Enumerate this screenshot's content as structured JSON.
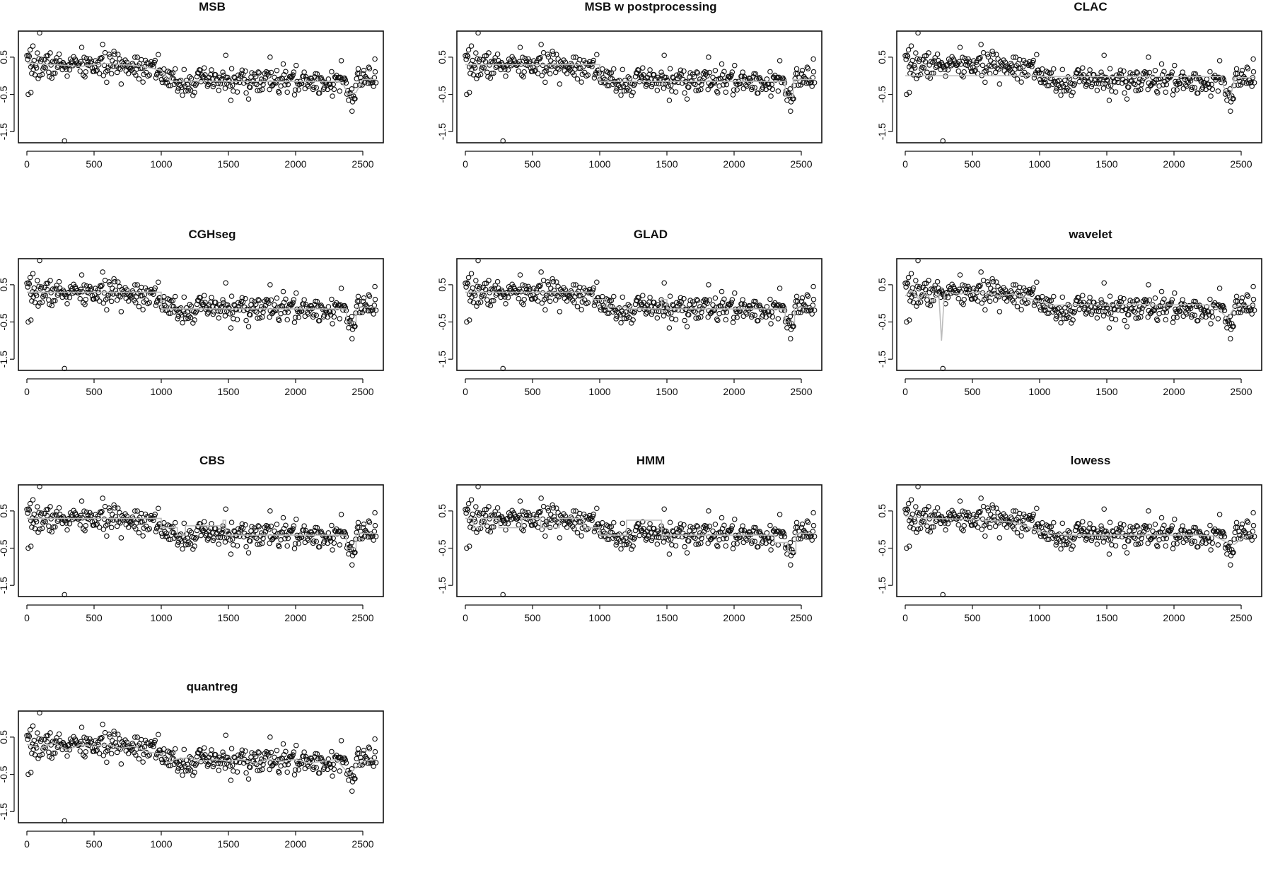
{
  "chart_data": [
    {
      "type": "scatter",
      "title": "MSB",
      "xlim": [
        0,
        2600
      ],
      "ylim": [
        -1.8,
        1.2
      ],
      "xticks": [
        "0",
        "500",
        "1000",
        "1500",
        "2000",
        "2500"
      ],
      "yticks": [
        "-1.5",
        "-0.5",
        "0.5"
      ],
      "series": [
        {
          "x": [
            0,
            100,
            200,
            300,
            400,
            500,
            600,
            700,
            800,
            900,
            1000,
            1050,
            1100,
            1300,
            1500,
            1700,
            1900,
            2100,
            2300,
            2350,
            2390,
            2450,
            2500,
            2600
          ],
          "y": [
            0.35,
            0.32,
            0.3,
            0.28,
            0.25,
            0.3,
            0.33,
            0.3,
            0.28,
            0.22,
            0.15,
            -0.1,
            -0.15,
            -0.14,
            -0.15,
            -0.15,
            -0.15,
            -0.15,
            -0.15,
            -0.2,
            -0.5,
            -0.45,
            -0.1,
            -0.1
          ]
        }
      ]
    },
    {
      "type": "scatter",
      "title": "MSB w postprocessing",
      "xlim": [
        0,
        2600
      ],
      "ylim": [
        -1.8,
        1.2
      ],
      "xticks": [
        "0",
        "500",
        "1000",
        "1500",
        "2000",
        "2500"
      ],
      "yticks": [
        "-1.5",
        "-0.5",
        "0.5"
      ],
      "series": [
        {
          "x": [
            0,
            1000,
            1000,
            2380,
            2380,
            2440,
            2440,
            2600
          ],
          "y": [
            0.3,
            0.3,
            -0.15,
            -0.15,
            -0.55,
            -0.55,
            -0.1,
            -0.1
          ]
        }
      ]
    },
    {
      "type": "scatter",
      "title": "CLAC",
      "xlim": [
        0,
        2600
      ],
      "ylim": [
        -1.8,
        1.2
      ],
      "xticks": [
        "0",
        "500",
        "1000",
        "1500",
        "2000",
        "2500"
      ],
      "yticks": [
        "-1.5",
        "-0.5",
        "0.5"
      ],
      "series": [
        {
          "x": [
            0,
            1000,
            1000,
            2350,
            2370,
            2420,
            2450,
            2600
          ],
          "y": [
            0.0,
            0.0,
            -0.02,
            -0.02,
            -0.3,
            -0.6,
            -0.05,
            -0.05
          ]
        }
      ]
    },
    {
      "type": "scatter",
      "title": "CGHseg",
      "xlim": [
        0,
        2600
      ],
      "ylim": [
        -1.8,
        1.2
      ],
      "xticks": [
        "0",
        "500",
        "1000",
        "1500",
        "2000",
        "2500"
      ],
      "yticks": [
        "-1.5",
        "-0.5",
        "0.5"
      ],
      "series": [
        {
          "x": [
            0,
            1000,
            1000,
            2380,
            2380,
            2450,
            2450,
            2600
          ],
          "y": [
            0.3,
            0.3,
            -0.15,
            -0.15,
            -0.5,
            -0.5,
            -0.1,
            -0.1
          ]
        }
      ]
    },
    {
      "type": "scatter",
      "title": "GLAD",
      "xlim": [
        0,
        2600
      ],
      "ylim": [
        -1.8,
        1.2
      ],
      "xticks": [
        "0",
        "500",
        "1000",
        "1500",
        "2000",
        "2500"
      ],
      "yticks": [
        "-1.5",
        "-0.5",
        "0.5"
      ],
      "series": [
        {
          "x": [
            0,
            950,
            950,
            1050,
            1050,
            1200,
            1200,
            1460,
            1460,
            1500,
            1500,
            2380,
            2380,
            2450,
            2450,
            2600
          ],
          "y": [
            0.3,
            0.3,
            0.1,
            0.1,
            -0.1,
            -0.1,
            -0.15,
            -0.15,
            0.1,
            0.1,
            -0.15,
            -0.15,
            -0.5,
            -0.5,
            -0.1,
            -0.1
          ]
        }
      ]
    },
    {
      "type": "scatter",
      "title": "wavelet",
      "xlim": [
        0,
        2600
      ],
      "ylim": [
        -1.8,
        1.2
      ],
      "xticks": [
        "0",
        "500",
        "1000",
        "1500",
        "2000",
        "2500"
      ],
      "yticks": [
        "-1.5",
        "-0.5",
        "0.5"
      ],
      "series": [
        {
          "x": [
            0,
            50,
            100,
            150,
            200,
            250,
            270,
            290,
            300,
            400,
            500,
            600,
            700,
            800,
            900,
            1000,
            1100,
            1300,
            1500,
            1700,
            1900,
            2100,
            2300,
            2400,
            2450,
            2500,
            2600
          ],
          "y": [
            0.2,
            0.35,
            0.1,
            0.3,
            0.05,
            0.25,
            -1.0,
            0.2,
            0.3,
            0.25,
            0.3,
            0.28,
            0.2,
            0.25,
            0.15,
            0.05,
            -0.05,
            -0.03,
            -0.05,
            -0.02,
            -0.05,
            -0.03,
            -0.05,
            -0.4,
            -0.1,
            -0.05,
            -0.05
          ]
        }
      ]
    },
    {
      "type": "scatter",
      "title": "CBS",
      "xlim": [
        0,
        2600
      ],
      "ylim": [
        -1.8,
        1.2
      ],
      "xticks": [
        "0",
        "500",
        "1000",
        "1500",
        "2000",
        "2500"
      ],
      "yticks": [
        "-1.5",
        "-0.5",
        "0.5"
      ],
      "series": [
        {
          "x": [
            0,
            1000,
            1000,
            1120,
            1120,
            1180,
            1180,
            1460,
            1460,
            1480,
            1480,
            2380,
            2380,
            2450,
            2450,
            2600
          ],
          "y": [
            0.3,
            0.3,
            0.05,
            0.05,
            -0.15,
            -0.15,
            0.1,
            0.1,
            0.25,
            0.25,
            -0.15,
            -0.15,
            -0.5,
            -0.5,
            -0.1,
            -0.1
          ]
        }
      ]
    },
    {
      "type": "scatter",
      "title": "HMM",
      "xlim": [
        0,
        2600
      ],
      "ylim": [
        -1.8,
        1.2
      ],
      "xticks": [
        "0",
        "500",
        "1000",
        "1500",
        "2000",
        "2500"
      ],
      "yticks": [
        "-1.5",
        "-0.5",
        "0.5"
      ],
      "series": [
        {
          "x": [
            0,
            60,
            60,
            120,
            120,
            250,
            250,
            420,
            420,
            560,
            560,
            700,
            700,
            880,
            880,
            1000,
            1000,
            1200,
            1200,
            1460,
            1460,
            2300,
            2300,
            2400,
            2400,
            2460,
            2460,
            2600
          ],
          "y": [
            0.3,
            0.3,
            0.05,
            0.05,
            0.3,
            0.3,
            0.05,
            0.05,
            0.3,
            0.3,
            0.05,
            0.05,
            0.3,
            0.3,
            0.05,
            0.05,
            -0.15,
            -0.15,
            0.25,
            0.25,
            -0.15,
            -0.15,
            -0.35,
            -0.35,
            -0.6,
            -0.6,
            -0.1,
            -0.1
          ]
        }
      ]
    },
    {
      "type": "scatter",
      "title": "lowess",
      "xlim": [
        0,
        2600
      ],
      "ylim": [
        -1.8,
        1.2
      ],
      "xticks": [
        "0",
        "500",
        "1000",
        "1500",
        "2000",
        "2500"
      ],
      "yticks": [
        "-1.5",
        "-0.5",
        "0.5"
      ],
      "series": [
        {
          "x": [
            0,
            200,
            400,
            600,
            800,
            900,
            1000,
            1100,
            1200,
            1400,
            1600,
            1800,
            2000,
            2200,
            2300,
            2400,
            2450,
            2500,
            2600
          ],
          "y": [
            0.35,
            0.3,
            0.28,
            0.25,
            0.2,
            0.1,
            -0.05,
            -0.12,
            -0.15,
            -0.15,
            -0.15,
            -0.15,
            -0.15,
            -0.15,
            -0.18,
            -0.35,
            -0.4,
            -0.25,
            -0.1
          ]
        }
      ]
    },
    {
      "type": "scatter",
      "title": "quantreg",
      "xlim": [
        0,
        2600
      ],
      "ylim": [
        -1.8,
        1.2
      ],
      "xticks": [
        "0",
        "500",
        "1000",
        "1500",
        "2000",
        "2500"
      ],
      "yticks": [
        "-1.5",
        "-0.5",
        "0.5"
      ],
      "series": [
        {
          "x": [
            0,
            100,
            200,
            300,
            400,
            500,
            600,
            700,
            800,
            900,
            1000,
            1050,
            1100,
            1200,
            1300,
            1400,
            1500,
            1600,
            1700,
            1800,
            1900,
            2000,
            2100,
            2200,
            2300,
            2400,
            2450,
            2500,
            2600
          ],
          "y": [
            0.3,
            0.2,
            0.35,
            0.15,
            0.3,
            0.25,
            0.3,
            0.2,
            0.25,
            0.1,
            0.05,
            -0.2,
            -0.1,
            -0.05,
            -0.15,
            -0.1,
            -0.15,
            -0.1,
            -0.2,
            -0.1,
            -0.15,
            -0.1,
            -0.2,
            -0.15,
            -0.1,
            -0.5,
            -0.3,
            -0.15,
            -0.1
          ]
        }
      ]
    }
  ]
}
